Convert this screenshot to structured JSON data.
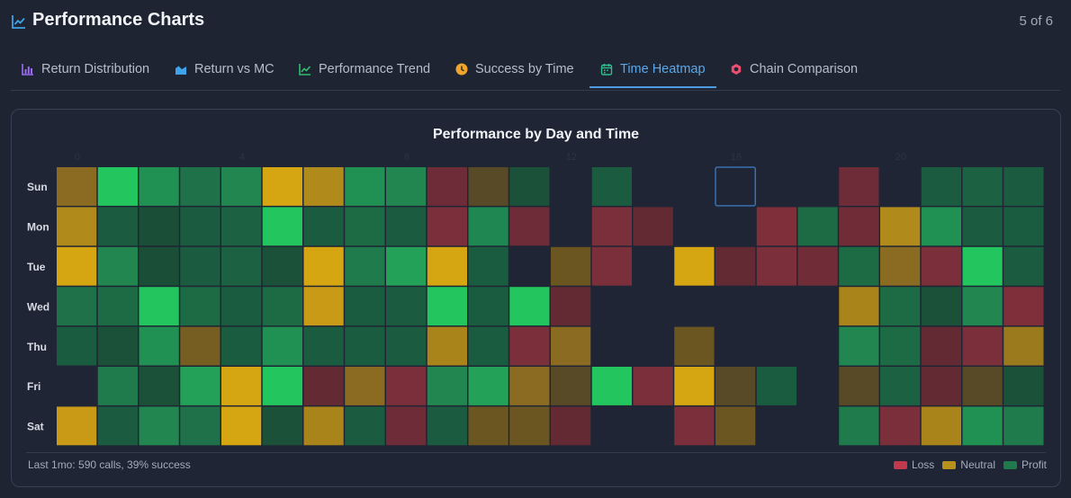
{
  "header": {
    "title": "Performance Charts",
    "counter": "5 of 6"
  },
  "tabs": [
    {
      "label": "Return Distribution",
      "icon": "bar-chart-icon",
      "color": "#9b6cf2"
    },
    {
      "label": "Return vs MC",
      "icon": "area-chart-icon",
      "color": "#3fa3e8"
    },
    {
      "label": "Performance Trend",
      "icon": "line-chart-icon",
      "color": "#2fbf6a"
    },
    {
      "label": "Success by Time",
      "icon": "clock-icon",
      "color": "#f0a42a"
    },
    {
      "label": "Time Heatmap",
      "icon": "calendar-icon",
      "color": "#2fbf8f",
      "active": true
    },
    {
      "label": "Chain Comparison",
      "icon": "hexagon-icon",
      "color": "#ef4f6f"
    }
  ],
  "chart_data": {
    "type": "heatmap",
    "title": "Performance by Day and Time",
    "rows": [
      "Sun",
      "Mon",
      "Tue",
      "Wed",
      "Thu",
      "Fri",
      "Sat"
    ],
    "columns": 24,
    "hour_labels": [
      "0",
      "4",
      "8",
      "12",
      "16",
      "20"
    ],
    "highlighted_cell": {
      "row": "Sun",
      "column": 16
    },
    "cells": [
      [
        "#8b6b21",
        "#22c55e",
        "#219053",
        "#1f7149",
        "#218650",
        "#d6a512",
        "#b18a1c",
        "#219053",
        "#218650",
        "#6e2c38",
        "#584a26",
        "#1b5039",
        null,
        "#1b5c40",
        null,
        null,
        null,
        null,
        null,
        "#6e2c38",
        null,
        "#1b5c40",
        "#1c6242",
        "#1b5c40"
      ],
      [
        "#b18a1c",
        "#1b5c40",
        "#1a4e37",
        "#1b5c40",
        "#1c6242",
        "#22c55e",
        "#1b5c40",
        "#1d6b45",
        "#1b5c40",
        "#7a2f3a",
        "#1f8752",
        "#6e2c38",
        null,
        "#7a2f3a",
        "#632a33",
        null,
        null,
        "#7e2f3a",
        "#1d6b45",
        "#702d38",
        "#b18a1c",
        "#219053",
        "#1b5c40",
        "#1a5c3f"
      ],
      [
        "#d6a512",
        "#218650",
        "#1a4e37",
        "#1b5c40",
        "#1c6242",
        "#1b5039",
        "#d6a512",
        "#1f7a4c",
        "#23a158",
        "#d6a512",
        "#1a5c3f",
        null,
        "#6b5622",
        "#7a2f3a",
        null,
        "#d6a512",
        "#632a33",
        "#7a2f3a",
        "#702d38",
        "#1d6b45",
        "#8b6b21",
        "#7a2f3a",
        "#22c55e",
        "#1b5c40"
      ],
      [
        "#1f7149",
        "#1d6b45",
        "#22c55e",
        "#1d6b45",
        "#1a5c3f",
        "#1d6b45",
        "#c99a15",
        "#1a5c3f",
        "#1b5c40",
        "#22c55e",
        "#1a5c3f",
        "#22c55e",
        "#632a33",
        null,
        null,
        null,
        null,
        null,
        null,
        "#a8841b",
        "#1d6b45",
        "#1b5039",
        "#218650",
        "#7e2f3a"
      ],
      [
        "#1a5c3f",
        "#1b5039",
        "#219053",
        "#765d22",
        "#1a5c3f",
        "#219053",
        "#1b5c40",
        "#1a5c3f",
        "#1b5c40",
        "#a8841b",
        "#1a5c3f",
        "#7a2f3a",
        "#8b6b21",
        null,
        null,
        "#6b5622",
        null,
        null,
        null,
        "#218650",
        "#1d6b45",
        "#632a33",
        "#7a2f3a",
        "#9b7a1e"
      ],
      [
        null,
        "#1f7a4c",
        "#1b5039",
        "#23a158",
        "#d6a512",
        "#22c55e",
        "#632a33",
        "#8b6b21",
        "#7a2f3a",
        "#218650",
        "#23a158",
        "#8b6b21",
        "#584a26",
        "#22c55e",
        "#7a2f3a",
        "#d6a512",
        "#584a26",
        "#1a5c3f",
        null,
        "#584a26",
        "#1c6242",
        "#632a33",
        "#584a26",
        "#1b5039"
      ],
      [
        "#c99a15",
        "#1b5c40",
        "#218650",
        "#1f7149",
        "#d6a512",
        "#1b5039",
        "#a8841b",
        "#1b5c40",
        "#6e2c38",
        "#1b5c40",
        "#6b5622",
        "#6b5622",
        "#632a33",
        null,
        null,
        "#7a2f3a",
        "#6b5622",
        null,
        null,
        "#1f7a4c",
        "#7a2f3a",
        "#a8841b",
        "#219053",
        "#1f7a4c"
      ]
    ],
    "legend": [
      {
        "label": "Loss",
        "color": "#c0394d"
      },
      {
        "label": "Neutral",
        "color": "#b8901c"
      },
      {
        "label": "Profit",
        "color": "#1f7a4c"
      }
    ],
    "summary": "Last 1mo: 590 calls, 39% success"
  }
}
